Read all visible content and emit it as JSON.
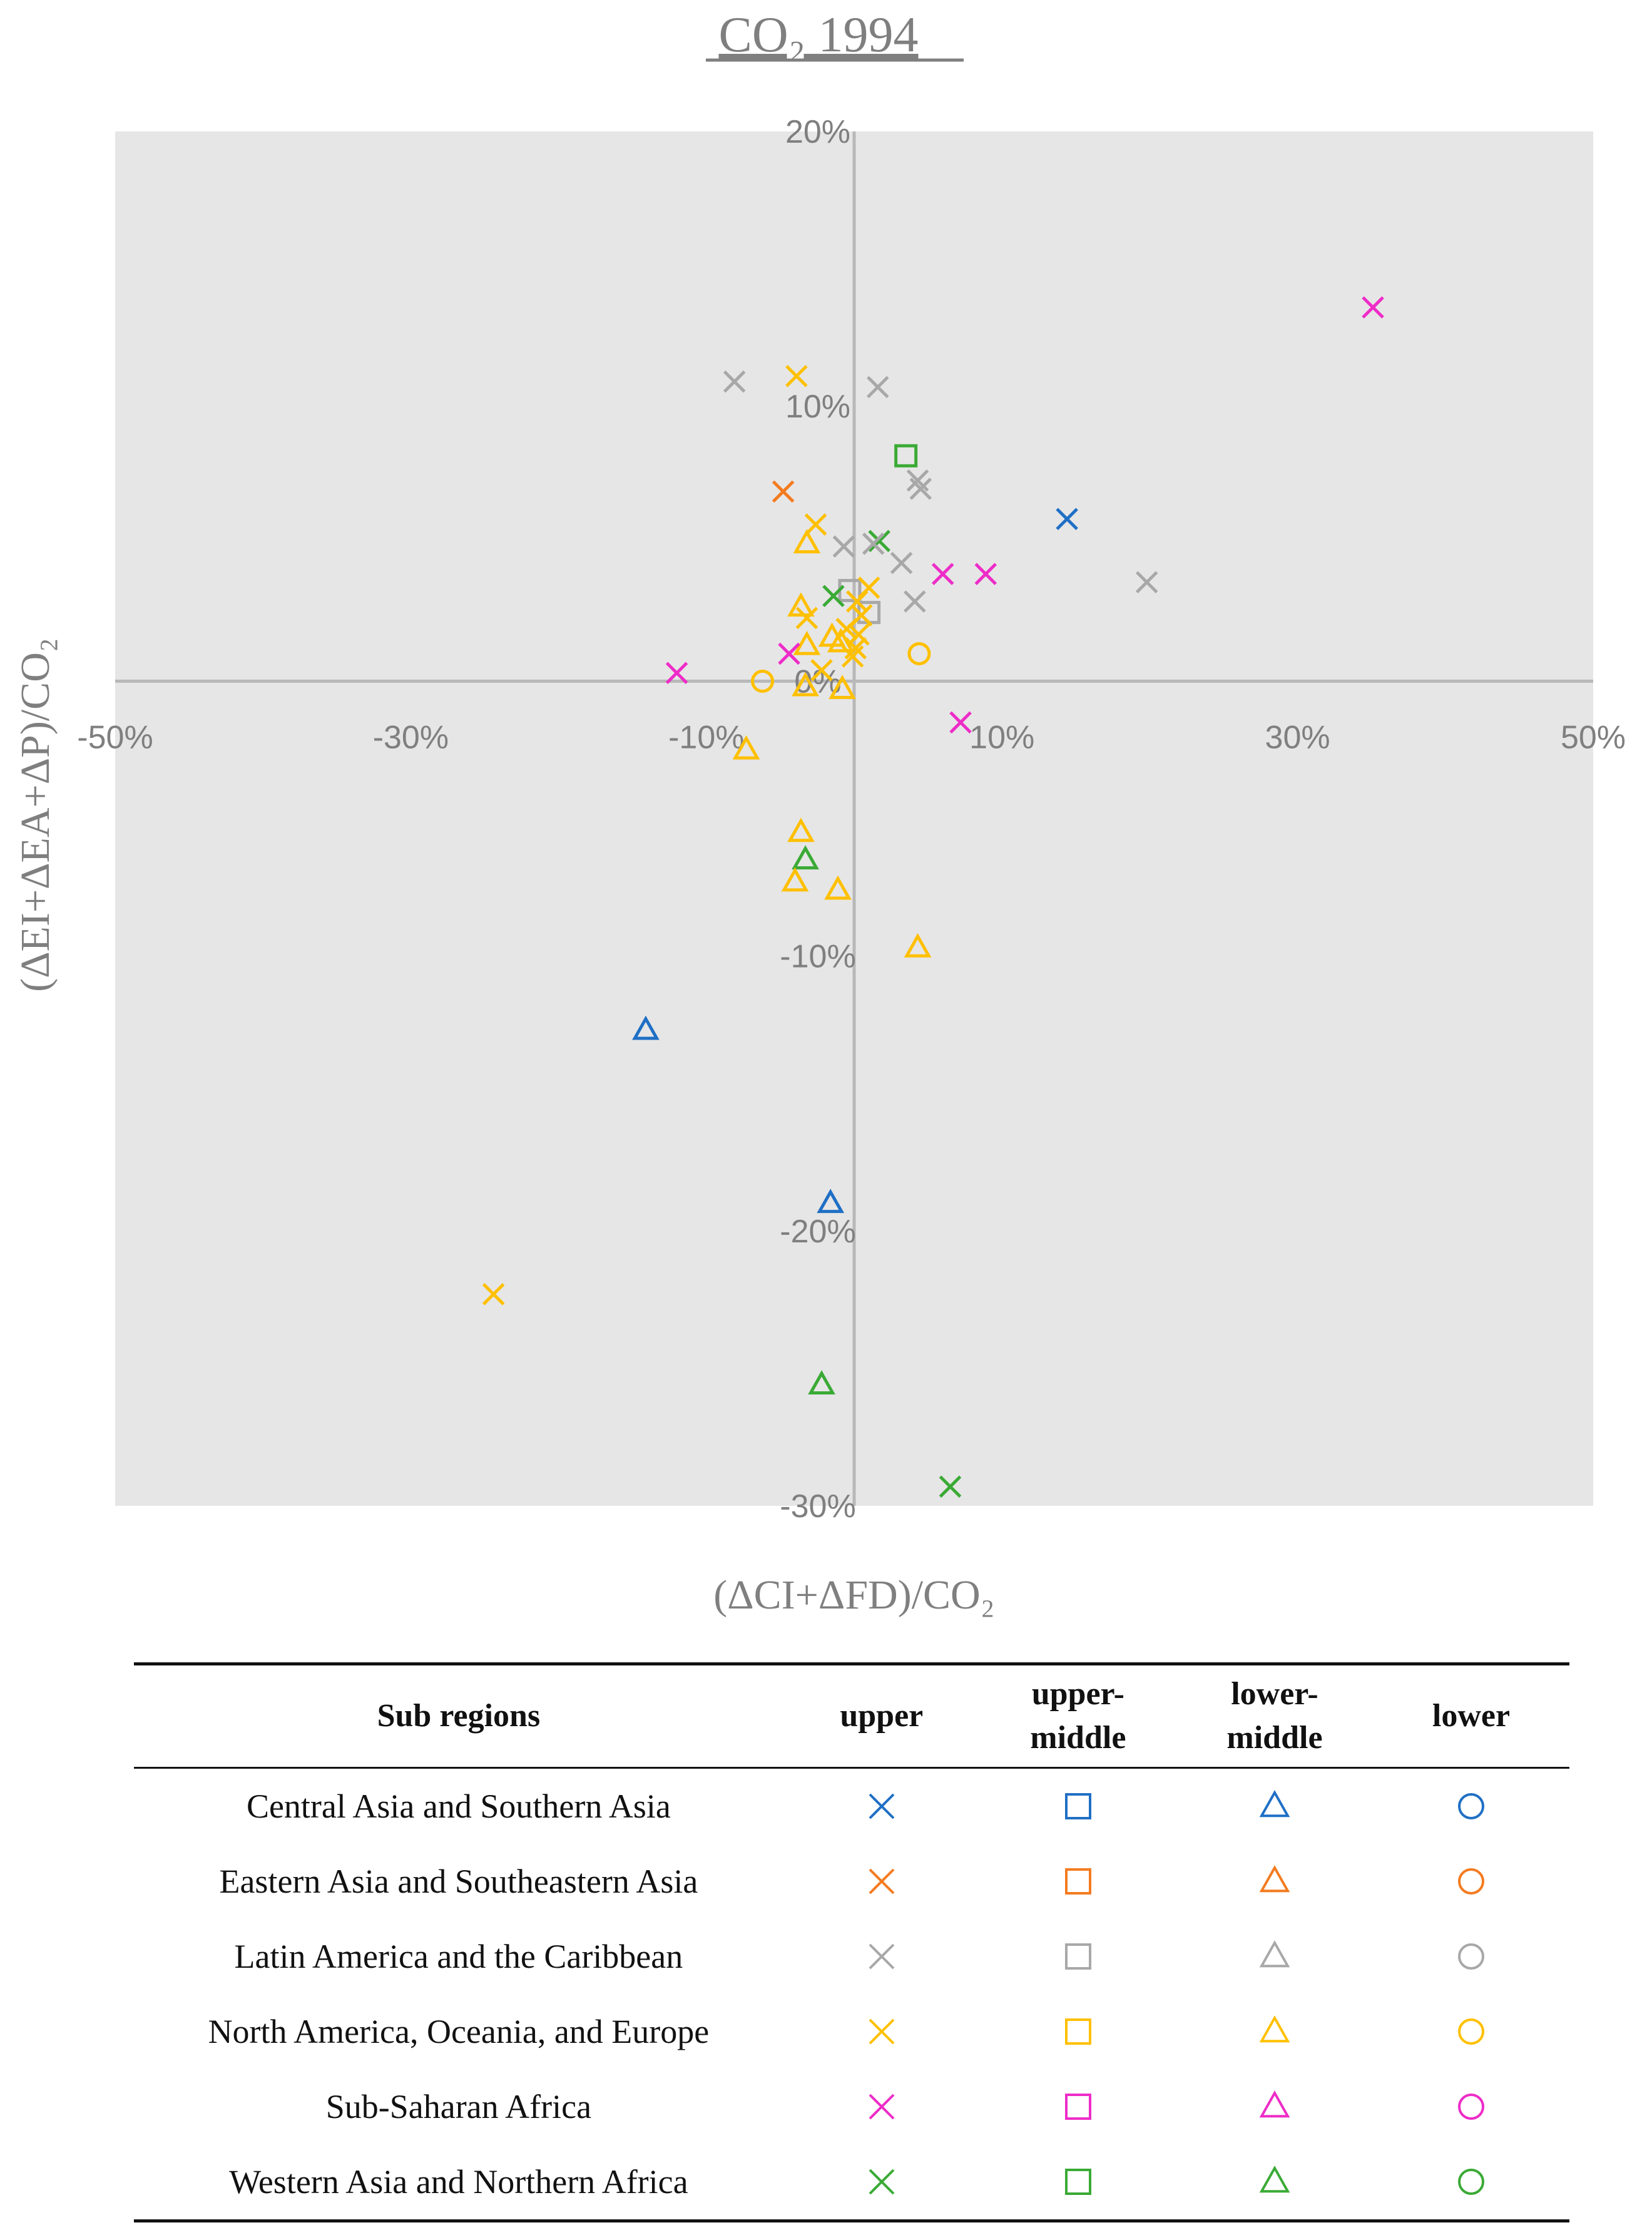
{
  "chart_data": {
    "type": "scatter",
    "title": "CO₂ 1994",
    "xlabel": "(ΔCI+ΔFD)/CO₂",
    "ylabel": "(ΔEI+ΔEA+ΔP)/CO₂",
    "xlim": [
      -50,
      50
    ],
    "ylim": [
      -30,
      20
    ],
    "x_ticks": [
      -50,
      -30,
      -10,
      10,
      30,
      50
    ],
    "x_tick_labels": [
      "-50%",
      "-30%",
      "-10%",
      "10%",
      "30%",
      "50%"
    ],
    "y_ticks": [
      20,
      10,
      0,
      -10,
      -20,
      -30
    ],
    "y_tick_labels": [
      "20%",
      "10%",
      "0%",
      "-10%",
      "-20%",
      "-30%"
    ],
    "units": "%",
    "colors": {
      "central": "#1f6fc5",
      "eastern": "#f47b20",
      "latin": "#a8a8a8",
      "north": "#ffc000",
      "subsaharan": "#ee2cc8",
      "western": "#3aaa35",
      "plot_bg": "#e6e6e6",
      "axis": "#b8b8b8",
      "text": "#7f7f7f"
    },
    "points": [
      {
        "x": 35.1,
        "y": 13.6,
        "region": "subsaharan",
        "group": "upper"
      },
      {
        "x": -8.1,
        "y": 10.9,
        "region": "latin",
        "group": "upper"
      },
      {
        "x": 1.6,
        "y": 10.7,
        "region": "latin",
        "group": "upper"
      },
      {
        "x": -3.9,
        "y": 11.1,
        "region": "north",
        "group": "upper"
      },
      {
        "x": 3.5,
        "y": 8.2,
        "region": "western",
        "group": "upper-middle"
      },
      {
        "x": 4.5,
        "y": 7.0,
        "region": "latin",
        "group": "upper"
      },
      {
        "x": 4.3,
        "y": 7.3,
        "region": "latin",
        "group": "upper"
      },
      {
        "x": -4.8,
        "y": 6.9,
        "region": "eastern",
        "group": "upper"
      },
      {
        "x": 14.4,
        "y": 5.9,
        "region": "central",
        "group": "upper"
      },
      {
        "x": -2.6,
        "y": 5.7,
        "region": "north",
        "group": "upper"
      },
      {
        "x": -3.2,
        "y": 5.0,
        "region": "north",
        "group": "lower-middle"
      },
      {
        "x": -0.7,
        "y": 4.9,
        "region": "latin",
        "group": "upper"
      },
      {
        "x": 1.7,
        "y": 5.1,
        "region": "western",
        "group": "upper"
      },
      {
        "x": 3.2,
        "y": 4.3,
        "region": "latin",
        "group": "upper"
      },
      {
        "x": 1.3,
        "y": 5.0,
        "region": "latin",
        "group": "upper"
      },
      {
        "x": 6.0,
        "y": 3.9,
        "region": "subsaharan",
        "group": "upper"
      },
      {
        "x": 8.9,
        "y": 3.9,
        "region": "subsaharan",
        "group": "upper"
      },
      {
        "x": 19.8,
        "y": 3.6,
        "region": "latin",
        "group": "upper"
      },
      {
        "x": -0.3,
        "y": 3.3,
        "region": "latin",
        "group": "upper-middle"
      },
      {
        "x": -1.4,
        "y": 3.1,
        "region": "western",
        "group": "upper"
      },
      {
        "x": 1.0,
        "y": 3.4,
        "region": "north",
        "group": "upper"
      },
      {
        "x": 4.1,
        "y": 2.9,
        "region": "latin",
        "group": "upper"
      },
      {
        "x": 1.0,
        "y": 2.5,
        "region": "latin",
        "group": "upper-middle"
      },
      {
        "x": -3.6,
        "y": 2.7,
        "region": "north",
        "group": "lower-middle"
      },
      {
        "x": -3.2,
        "y": 2.3,
        "region": "north",
        "group": "upper"
      },
      {
        "x": 0.2,
        "y": 2.9,
        "region": "north",
        "group": "upper"
      },
      {
        "x": 0.5,
        "y": 2.4,
        "region": "north",
        "group": "upper"
      },
      {
        "x": -0.5,
        "y": 1.9,
        "region": "north",
        "group": "upper"
      },
      {
        "x": -1.5,
        "y": 1.6,
        "region": "north",
        "group": "lower-middle"
      },
      {
        "x": -0.9,
        "y": 1.4,
        "region": "north",
        "group": "lower-middle"
      },
      {
        "x": 0.3,
        "y": 1.7,
        "region": "north",
        "group": "upper"
      },
      {
        "x": 0.1,
        "y": 1.2,
        "region": "north",
        "group": "upper"
      },
      {
        "x": -0.1,
        "y": 0.9,
        "region": "north",
        "group": "upper"
      },
      {
        "x": -3.2,
        "y": 1.3,
        "region": "north",
        "group": "lower-middle"
      },
      {
        "x": -4.4,
        "y": 1.0,
        "region": "subsaharan",
        "group": "upper"
      },
      {
        "x": 4.4,
        "y": 1.0,
        "region": "north",
        "group": "lower"
      },
      {
        "x": -2.2,
        "y": 0.4,
        "region": "north",
        "group": "upper"
      },
      {
        "x": -12.0,
        "y": 0.3,
        "region": "subsaharan",
        "group": "upper"
      },
      {
        "x": -6.2,
        "y": 0.0,
        "region": "north",
        "group": "lower"
      },
      {
        "x": -3.3,
        "y": -0.2,
        "region": "north",
        "group": "lower-middle"
      },
      {
        "x": -0.8,
        "y": -0.3,
        "region": "north",
        "group": "lower-middle"
      },
      {
        "x": 7.2,
        "y": -1.5,
        "region": "subsaharan",
        "group": "upper"
      },
      {
        "x": -7.3,
        "y": -2.5,
        "region": "north",
        "group": "lower-middle"
      },
      {
        "x": -3.6,
        "y": -5.5,
        "region": "north",
        "group": "lower-middle"
      },
      {
        "x": -3.3,
        "y": -6.5,
        "region": "western",
        "group": "lower-middle"
      },
      {
        "x": -4.0,
        "y": -7.3,
        "region": "north",
        "group": "lower-middle"
      },
      {
        "x": -1.1,
        "y": -7.6,
        "region": "north",
        "group": "lower-middle"
      },
      {
        "x": 4.3,
        "y": -9.7,
        "region": "north",
        "group": "lower-middle"
      },
      {
        "x": -14.1,
        "y": -12.7,
        "region": "central",
        "group": "lower-middle"
      },
      {
        "x": -1.6,
        "y": -19.0,
        "region": "central",
        "group": "lower-middle"
      },
      {
        "x": -24.4,
        "y": -22.3,
        "region": "north",
        "group": "upper"
      },
      {
        "x": -2.2,
        "y": -25.6,
        "region": "western",
        "group": "lower-middle"
      },
      {
        "x": 6.5,
        "y": -29.3,
        "region": "western",
        "group": "upper"
      }
    ]
  },
  "legend": {
    "headers": {
      "region": "Sub regions",
      "upper": "upper",
      "upper_middle_1": "upper-",
      "upper_middle_2": "middle",
      "lower_middle_1": "lower-",
      "lower_middle_2": "middle",
      "lower": "lower"
    },
    "rows": [
      {
        "key": "central",
        "label": "Central Asia and Southern Asia"
      },
      {
        "key": "eastern",
        "label": "Eastern Asia and Southeastern Asia"
      },
      {
        "key": "latin",
        "label": "Latin America and the Caribbean"
      },
      {
        "key": "north",
        "label": "North America, Oceania, and Europe"
      },
      {
        "key": "subsaharan",
        "label": "Sub-Saharan Africa"
      },
      {
        "key": "western",
        "label": "Western Asia and Northern Africa"
      }
    ],
    "symbol_icons": [
      "cross-icon",
      "square-icon",
      "triangle-icon",
      "circle-icon"
    ]
  }
}
